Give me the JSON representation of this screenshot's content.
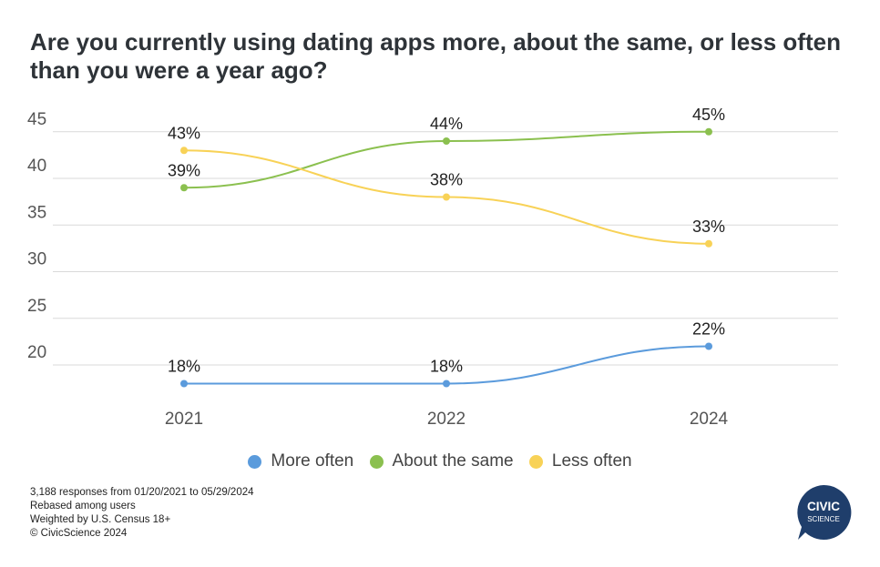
{
  "title": "Are you currently using dating apps more, about the same, or less often than you were a year ago?",
  "chart_data": {
    "type": "line",
    "title": "Are you currently using dating apps more, about the same, or less often than you were a year ago?",
    "categories": [
      "2021",
      "2022",
      "2024"
    ],
    "y_ticks": [
      "20",
      "25",
      "30",
      "35",
      "40",
      "45"
    ],
    "ylim": [
      15,
      46
    ],
    "grid": true,
    "legend_position": "bottom",
    "series": [
      {
        "name": "More often",
        "color": "#5b9bdc",
        "values": [
          18,
          18,
          22
        ],
        "labels": [
          "18%",
          "18%",
          "22%"
        ]
      },
      {
        "name": "About the same",
        "color": "#8bc04f",
        "values": [
          39,
          44,
          45
        ],
        "labels": [
          "39%",
          "44%",
          "45%"
        ]
      },
      {
        "name": "Less often",
        "color": "#f8d257",
        "values": [
          43,
          38,
          33
        ],
        "labels": [
          "43%",
          "38%",
          "33%"
        ]
      }
    ]
  },
  "legend": [
    {
      "label": "More often",
      "color": "#5b9bdc"
    },
    {
      "label": "About the same",
      "color": "#8bc04f"
    },
    {
      "label": "Less often",
      "color": "#f8d257"
    }
  ],
  "notes": [
    "3,188 responses from 01/20/2021 to 05/29/2024",
    "Rebased among users",
    "Weighted by U.S. Census 18+",
    "© CivicScience 2024"
  ],
  "logo": {
    "line1": "CIVIC",
    "line2": "SCIENCE",
    "color": "#1f3e6b"
  }
}
